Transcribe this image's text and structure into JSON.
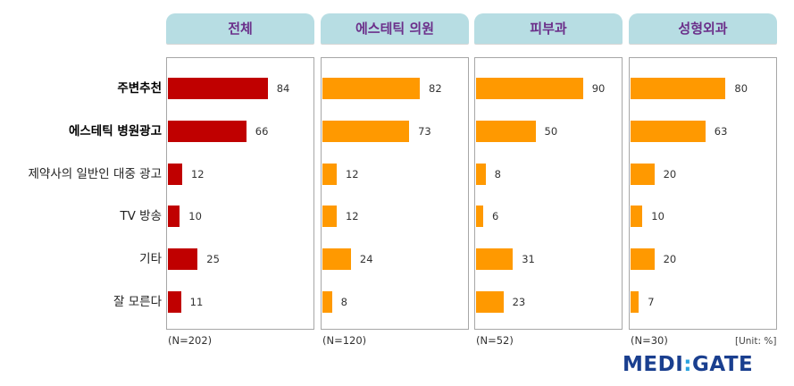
{
  "chart_data": {
    "type": "bar",
    "orientation": "horizontal",
    "categories": [
      "주변추천",
      "에스테틱 병원광고",
      "제약사의 일반인 대중 광고",
      "TV 방송",
      "기타",
      "잘 모른다"
    ],
    "bold_categories": [
      0,
      1
    ],
    "panels": [
      {
        "title": "전체",
        "n_label": "(N=202)",
        "color": "#c00000",
        "values": [
          84,
          66,
          12,
          10,
          25,
          11
        ]
      },
      {
        "title": "에스테틱 의원",
        "n_label": "(N=120)",
        "color": "#ff9900",
        "values": [
          82,
          73,
          12,
          12,
          24,
          8
        ]
      },
      {
        "title": "피부과",
        "n_label": "(N=52)",
        "color": "#ff9900",
        "values": [
          90,
          50,
          8,
          6,
          31,
          23
        ]
      },
      {
        "title": "성형외과",
        "n_label": "(N=30)",
        "color": "#ff9900",
        "values": [
          80,
          63,
          20,
          10,
          20,
          7
        ]
      }
    ],
    "unit_label": "[Unit: %]",
    "xlim": [
      0,
      100
    ],
    "grid": false
  },
  "branding": {
    "logo_left": "MEDI",
    "logo_sep": ":",
    "logo_right": "GATE",
    "logo_color": "#1a3f8f",
    "logo_accent": "#2aa3df"
  }
}
